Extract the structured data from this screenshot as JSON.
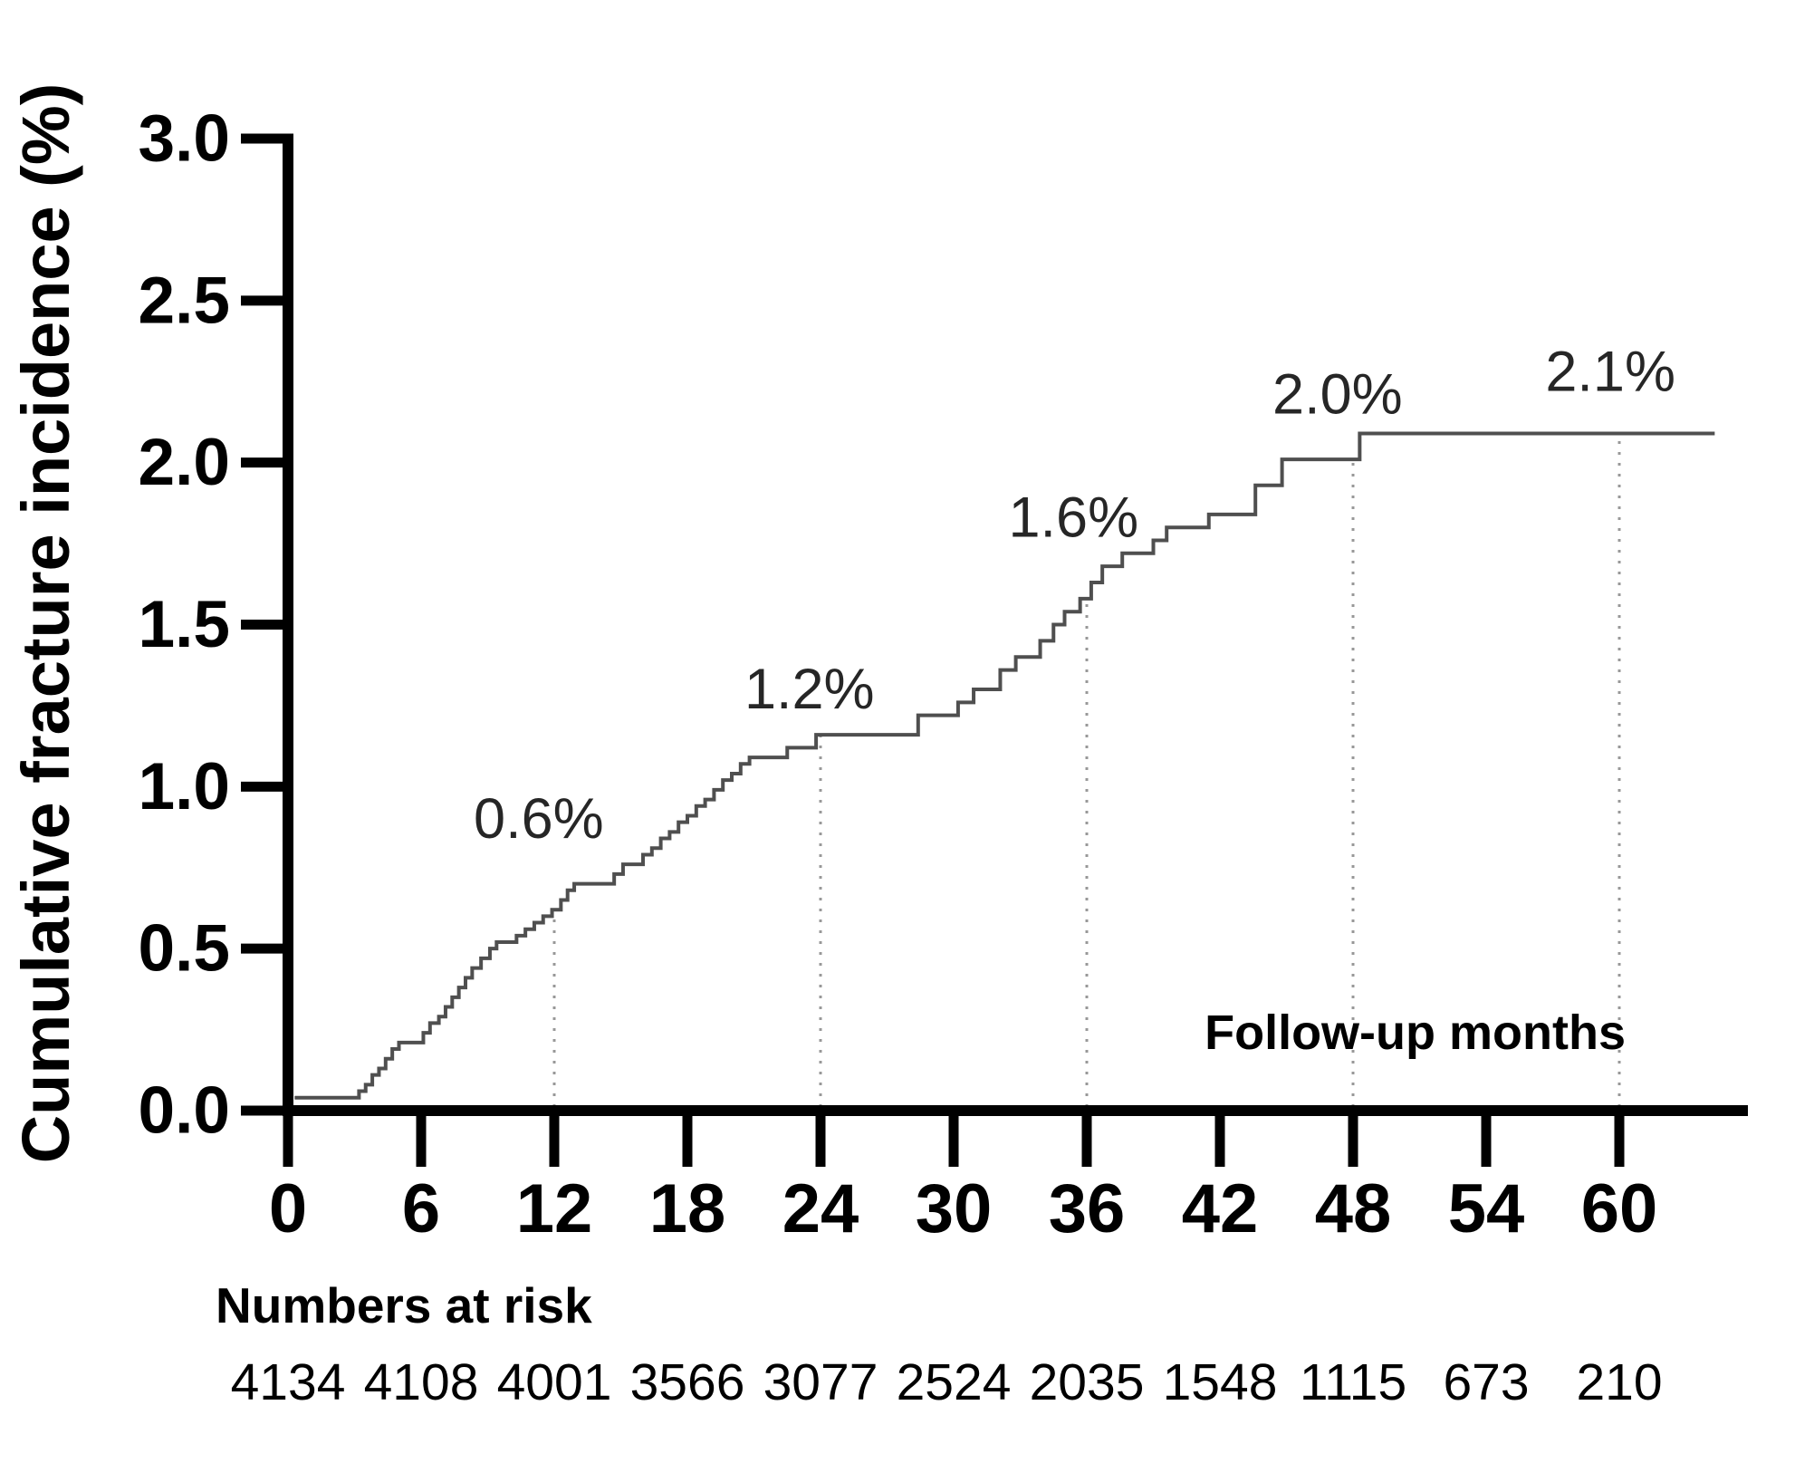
{
  "chart_data": {
    "type": "line",
    "subtype": "kaplan-meier-step",
    "title": "",
    "ylabel": "Cumulative fracture incidence (%)",
    "inplot_xlabel": "Follow-up months",
    "xlim": [
      0,
      66
    ],
    "ylim": [
      0.0,
      3.0
    ],
    "grid": false,
    "legend_position": "none",
    "x_ticks": [
      0,
      6,
      12,
      18,
      24,
      30,
      36,
      42,
      48,
      54,
      60
    ],
    "y_ticks": [
      "0.0",
      "0.5",
      "1.0",
      "1.5",
      "2.0",
      "2.5",
      "3.0"
    ],
    "colors": {
      "curve": "#4f4f4f",
      "axis": "#000000",
      "reference_line": "#989898",
      "annotation_text": "#262626",
      "background": "#ffffff"
    },
    "series": [
      {
        "name": "Cumulative fracture incidence",
        "step_points": [
          [
            0.3,
            0.04
          ],
          [
            3.2,
            0.06
          ],
          [
            3.5,
            0.08
          ],
          [
            3.8,
            0.11
          ],
          [
            4.1,
            0.13
          ],
          [
            4.4,
            0.16
          ],
          [
            4.7,
            0.19
          ],
          [
            5.0,
            0.21
          ],
          [
            6.1,
            0.24
          ],
          [
            6.4,
            0.27
          ],
          [
            6.8,
            0.29
          ],
          [
            7.1,
            0.32
          ],
          [
            7.4,
            0.35
          ],
          [
            7.7,
            0.38
          ],
          [
            8.0,
            0.41
          ],
          [
            8.3,
            0.44
          ],
          [
            8.7,
            0.47
          ],
          [
            9.1,
            0.5
          ],
          [
            9.4,
            0.52
          ],
          [
            10.3,
            0.54
          ],
          [
            10.7,
            0.56
          ],
          [
            11.1,
            0.58
          ],
          [
            11.5,
            0.6
          ],
          [
            11.9,
            0.62
          ],
          [
            12.3,
            0.65
          ],
          [
            12.6,
            0.68
          ],
          [
            12.9,
            0.7
          ],
          [
            14.7,
            0.73
          ],
          [
            15.1,
            0.76
          ],
          [
            16.0,
            0.79
          ],
          [
            16.4,
            0.81
          ],
          [
            16.8,
            0.84
          ],
          [
            17.2,
            0.86
          ],
          [
            17.6,
            0.89
          ],
          [
            18.0,
            0.91
          ],
          [
            18.4,
            0.94
          ],
          [
            18.8,
            0.96
          ],
          [
            19.2,
            0.99
          ],
          [
            19.6,
            1.02
          ],
          [
            20.0,
            1.04
          ],
          [
            20.4,
            1.07
          ],
          [
            20.8,
            1.09
          ],
          [
            22.5,
            1.12
          ],
          [
            23.8,
            1.16
          ],
          [
            28.4,
            1.22
          ],
          [
            30.2,
            1.26
          ],
          [
            30.9,
            1.3
          ],
          [
            32.1,
            1.36
          ],
          [
            32.8,
            1.4
          ],
          [
            33.9,
            1.45
          ],
          [
            34.5,
            1.5
          ],
          [
            35.0,
            1.54
          ],
          [
            35.7,
            1.58
          ],
          [
            36.2,
            1.63
          ],
          [
            36.7,
            1.68
          ],
          [
            37.6,
            1.72
          ],
          [
            39.0,
            1.76
          ],
          [
            39.6,
            1.8
          ],
          [
            41.5,
            1.84
          ],
          [
            43.6,
            1.93
          ],
          [
            44.8,
            2.01
          ],
          [
            48.3,
            2.09
          ]
        ],
        "end_x": 64.3
      }
    ],
    "reference_lines": [
      {
        "x": 12,
        "top": 0.62
      },
      {
        "x": 24,
        "top": 1.16
      },
      {
        "x": 36,
        "top": 1.58
      },
      {
        "x": 48,
        "top": 2.01
      },
      {
        "x": 60,
        "top": 2.09
      }
    ],
    "annotations": [
      {
        "text": "0.6%",
        "x": 11.3,
        "y": 0.9
      },
      {
        "text": "1.2%",
        "x": 23.5,
        "y": 1.3
      },
      {
        "text": "1.6%",
        "x": 35.4,
        "y": 1.83
      },
      {
        "text": "2.0%",
        "x": 47.3,
        "y": 2.21
      },
      {
        "text": "2.1%",
        "x": 59.6,
        "y": 2.28
      }
    ],
    "numbers_at_risk": {
      "label": "Numbers at risk",
      "months": [
        0,
        6,
        12,
        18,
        24,
        30,
        36,
        42,
        48,
        54,
        60
      ],
      "values": [
        4134,
        4108,
        4001,
        3566,
        3077,
        2524,
        2035,
        1548,
        1115,
        673,
        210
      ]
    }
  }
}
